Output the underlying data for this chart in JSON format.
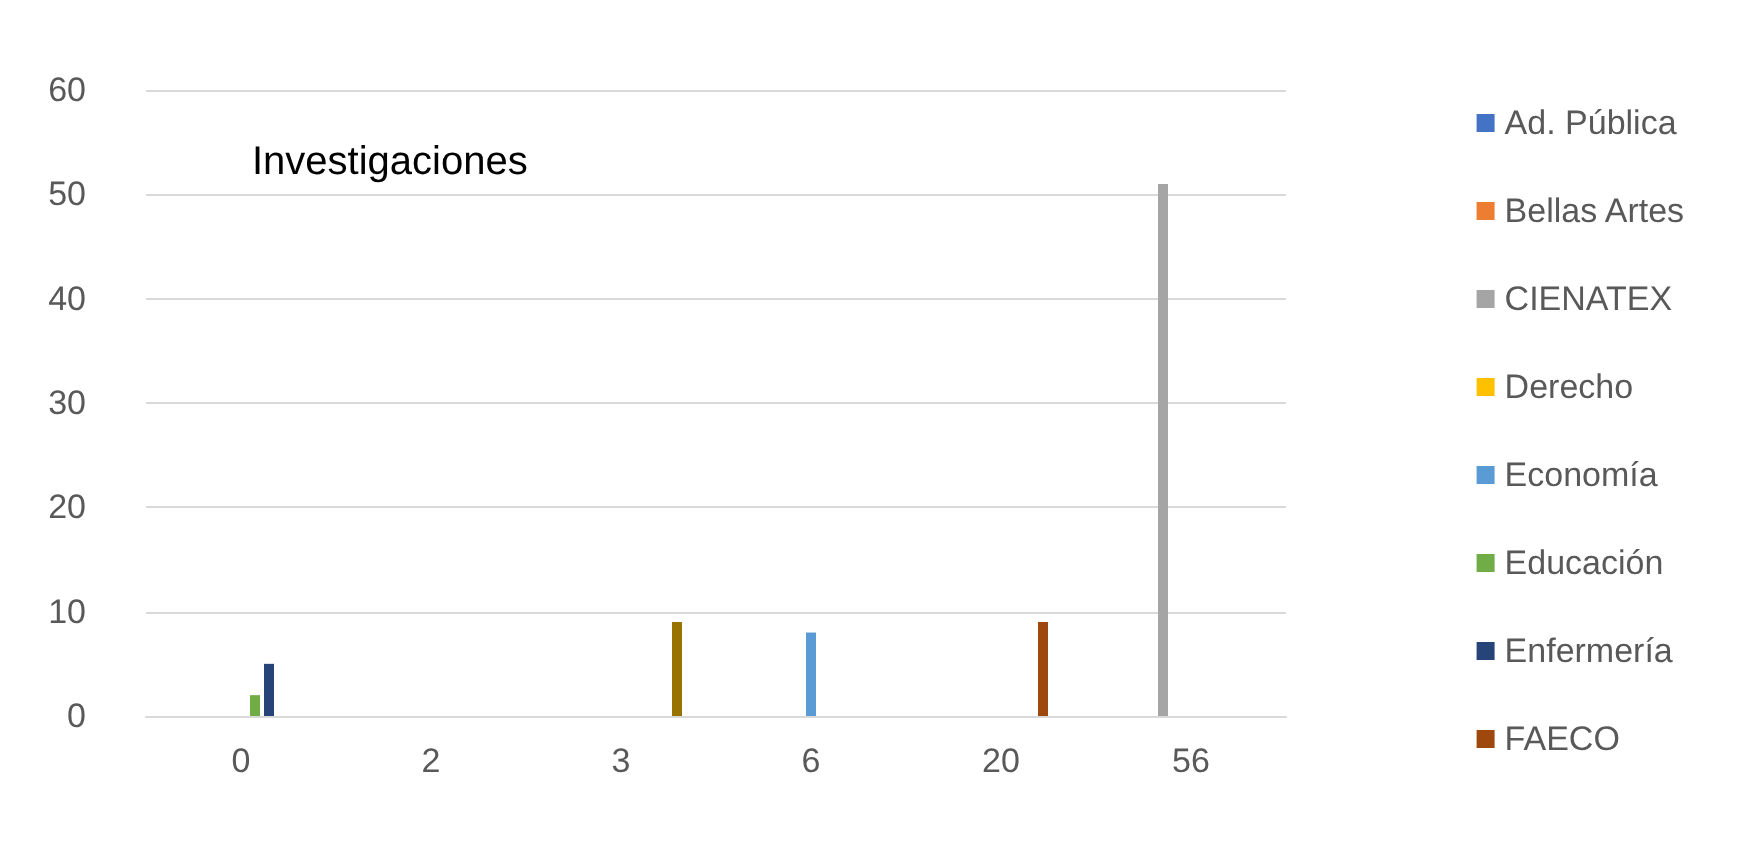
{
  "chart_data": {
    "type": "bar",
    "title": "Investigaciones",
    "categories": [
      "0",
      "2",
      "3",
      "6",
      "20",
      "56"
    ],
    "series": [
      {
        "name": "Ad. Pública",
        "color": "#4472c4",
        "values": [
          null,
          null,
          null,
          null,
          null,
          null
        ]
      },
      {
        "name": "Bellas Artes",
        "color": "#ed7d31",
        "values": [
          null,
          null,
          null,
          null,
          null,
          null
        ]
      },
      {
        "name": "CIENATEX",
        "color": "#a5a5a5",
        "values": [
          null,
          null,
          null,
          null,
          null,
          51
        ]
      },
      {
        "name": "Derecho",
        "color": "#ffc000",
        "values": [
          null,
          null,
          null,
          null,
          null,
          null
        ]
      },
      {
        "name": "Economía",
        "color": "#5b9bd5",
        "values": [
          null,
          null,
          null,
          8,
          null,
          null
        ]
      },
      {
        "name": "Educación",
        "color": "#70ad47",
        "values": [
          2,
          null,
          null,
          null,
          null,
          null
        ]
      },
      {
        "name": "Enfermería",
        "color": "#264478",
        "values": [
          5,
          null,
          null,
          null,
          null,
          null
        ]
      },
      {
        "name": "FAECO",
        "color": "#9e480e",
        "values": [
          null,
          null,
          null,
          null,
          9,
          null
        ]
      },
      {
        "color": "#997300",
        "values": [
          null,
          null,
          9,
          null,
          null,
          null
        ]
      }
    ],
    "ylim": [
      0,
      60
    ],
    "yticks": [
      0,
      10,
      20,
      30,
      40,
      50,
      60
    ],
    "grid": "y",
    "legend": "right"
  }
}
